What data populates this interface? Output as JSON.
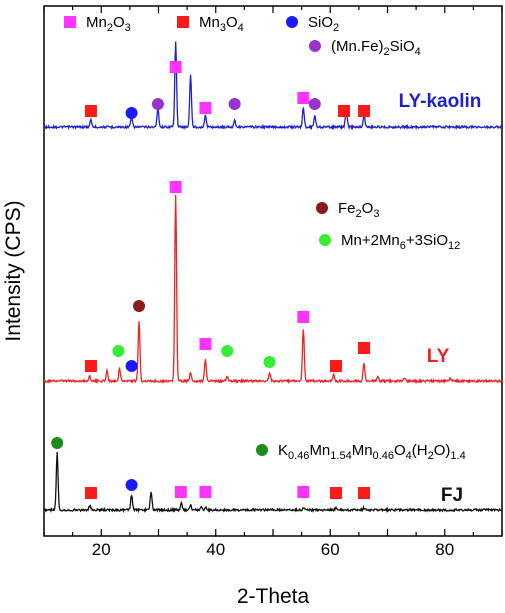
{
  "chart_data": {
    "type": "line",
    "xlabel": "2-Theta",
    "ylabel": "Intensity (CPS)",
    "xlim": [
      10,
      90
    ],
    "x_ticks": [
      20,
      40,
      60,
      80
    ],
    "y_ticks_shown": false,
    "grid": false,
    "marker_legends": [
      {
        "key": "mn2o3",
        "shape": "square",
        "color": "#ff33ff",
        "parts": [
          [
            "Mn",
            ""
          ],
          [
            "2",
            "sub"
          ],
          [
            "O",
            ""
          ],
          [
            "3",
            "sub"
          ]
        ]
      },
      {
        "key": "mn3o4",
        "shape": "square",
        "color": "#ff1a1a",
        "parts": [
          [
            "Mn",
            ""
          ],
          [
            "3",
            "sub"
          ],
          [
            "O",
            ""
          ],
          [
            "4",
            "sub"
          ]
        ]
      },
      {
        "key": "sio2",
        "shape": "circle",
        "color": "#1a1aff",
        "parts": [
          [
            "SiO",
            ""
          ],
          [
            "2",
            "sub"
          ]
        ]
      },
      {
        "key": "mnfe2sio4",
        "shape": "circle",
        "color": "#9933cc",
        "parts": [
          [
            "(Mn.Fe)",
            ""
          ],
          [
            "2",
            "sub"
          ],
          [
            "SiO",
            ""
          ],
          [
            "4",
            "sub"
          ]
        ]
      },
      {
        "key": "fe2o3",
        "shape": "circle",
        "color": "#8b1a1a",
        "parts": [
          [
            "Fe",
            ""
          ],
          [
            "2",
            "sub"
          ],
          [
            "O",
            ""
          ],
          [
            "3",
            "sub"
          ]
        ]
      },
      {
        "key": "mnsio",
        "shape": "circle",
        "color": "#33ee33",
        "parts": [
          [
            "Mn+2Mn",
            ""
          ],
          [
            "6",
            "sub"
          ],
          [
            "+3SiO",
            ""
          ],
          [
            "12",
            "sub"
          ]
        ]
      },
      {
        "key": "kmno",
        "shape": "circle",
        "color": "#1a8c1a",
        "parts": [
          [
            "K",
            ""
          ],
          [
            "0.46",
            "sub"
          ],
          [
            "Mn",
            ""
          ],
          [
            "1.54",
            "sub"
          ],
          [
            "Mn",
            ""
          ],
          [
            "0.46",
            "sub"
          ],
          [
            "O",
            ""
          ],
          [
            "4",
            "sub"
          ],
          [
            "(H",
            ""
          ],
          [
            "2",
            "sub"
          ],
          [
            "O)",
            ""
          ],
          [
            "1.4",
            "sub"
          ]
        ]
      }
    ],
    "series": [
      {
        "name": "LY-kaolin",
        "color": "#1f1fcc",
        "label_color": "#1f1fcc",
        "peaks": [
          [
            18.2,
            3
          ],
          [
            25.3,
            4
          ],
          [
            29.9,
            8
          ],
          [
            33.0,
            36
          ],
          [
            35.6,
            22
          ],
          [
            38.2,
            5
          ],
          [
            43.3,
            3
          ],
          [
            55.3,
            8
          ],
          [
            57.3,
            5
          ],
          [
            62.8,
            8
          ],
          [
            65.9,
            5
          ]
        ],
        "markers": [
          {
            "x": 18.2,
            "key": "mn3o4"
          },
          {
            "x": 25.3,
            "key": "sio2"
          },
          {
            "x": 29.9,
            "key": "mnfe2sio4"
          },
          {
            "x": 33.0,
            "key": "mn2o3"
          },
          {
            "x": 38.2,
            "key": "mn2o3"
          },
          {
            "x": 43.3,
            "key": "mnfe2sio4"
          },
          {
            "x": 55.3,
            "key": "mn2o3"
          },
          {
            "x": 57.3,
            "key": "mnfe2sio4"
          },
          {
            "x": 62.4,
            "key": "mn3o4"
          },
          {
            "x": 65.9,
            "key": "mn3o4"
          }
        ]
      },
      {
        "name": "LY",
        "color": "#ee2222",
        "label_color": "#ee2222",
        "peaks": [
          [
            18.0,
            5
          ],
          [
            21.0,
            10
          ],
          [
            23.2,
            13
          ],
          [
            26.6,
            60
          ],
          [
            33.0,
            185
          ],
          [
            35.6,
            8
          ],
          [
            38.2,
            21
          ],
          [
            42.0,
            4
          ],
          [
            49.4,
            8
          ],
          [
            55.3,
            52
          ],
          [
            60.6,
            6
          ],
          [
            65.9,
            18
          ],
          [
            68.3,
            4
          ],
          [
            73.0,
            3
          ],
          [
            81.0,
            3
          ]
        ],
        "markers": [
          {
            "x": 18.2,
            "key": "mn3o4"
          },
          {
            "x": 23.0,
            "key": "mnsio"
          },
          {
            "x": 25.3,
            "key": "sio2"
          },
          {
            "x": 26.6,
            "key": "fe2o3"
          },
          {
            "x": 33.0,
            "key": "mn2o3"
          },
          {
            "x": 38.2,
            "key": "mn2o3"
          },
          {
            "x": 42.0,
            "key": "mnsio"
          },
          {
            "x": 49.4,
            "key": "mnsio"
          },
          {
            "x": 55.3,
            "key": "mn2o3"
          },
          {
            "x": 61.0,
            "key": "mn3o4"
          },
          {
            "x": 65.9,
            "key": "mn3o4"
          }
        ]
      },
      {
        "name": "FJ",
        "color": "#111111",
        "label_color": "#111111",
        "peaks": [
          [
            12.3,
            57
          ],
          [
            18.0,
            4
          ],
          [
            25.3,
            15
          ],
          [
            28.7,
            18
          ],
          [
            34.0,
            7
          ],
          [
            35.6,
            5
          ],
          [
            37.5,
            3
          ],
          [
            38.2,
            3
          ],
          [
            55.3,
            2
          ],
          [
            61.0,
            2
          ],
          [
            65.9,
            2
          ]
        ],
        "markers": [
          {
            "x": 12.3,
            "key": "kmno"
          },
          {
            "x": 18.2,
            "key": "mn3o4"
          },
          {
            "x": 25.3,
            "key": "sio2"
          },
          {
            "x": 33.9,
            "key": "mn2o3"
          },
          {
            "x": 38.2,
            "key": "mn2o3"
          },
          {
            "x": 55.3,
            "key": "mn2o3"
          },
          {
            "x": 61.0,
            "key": "mn3o4"
          },
          {
            "x": 65.9,
            "key": "mn3o4"
          }
        ]
      }
    ]
  }
}
